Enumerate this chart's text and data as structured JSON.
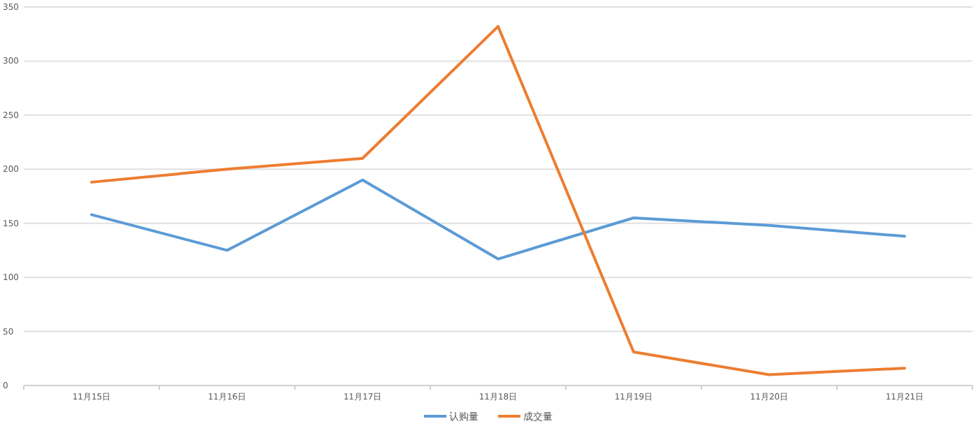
{
  "chart_data": {
    "type": "line",
    "categories": [
      "11月15日",
      "11月16日",
      "11月17日",
      "11月18日",
      "11月19日",
      "11月20日",
      "11月21日"
    ],
    "series": [
      {
        "name": "认购量",
        "color": "#5b9bd5",
        "values": [
          158,
          125,
          190,
          117,
          155,
          148,
          138
        ]
      },
      {
        "name": "成交量",
        "color": "#ed7d31",
        "values": [
          188,
          200,
          210,
          332,
          31,
          10,
          16
        ]
      }
    ],
    "ylim": [
      0,
      350
    ],
    "yticks": [
      0,
      50,
      100,
      150,
      200,
      250,
      300,
      350
    ],
    "grid": "y",
    "legend": "bottom",
    "marker": "none",
    "line_style": "solid"
  }
}
